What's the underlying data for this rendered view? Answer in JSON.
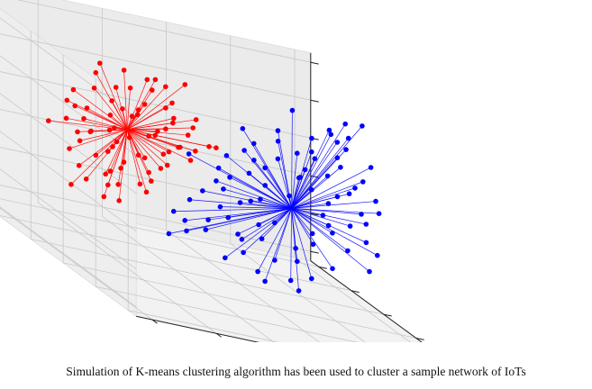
{
  "caption": "Simulation of K-means clustering algorithm has been used to cluster a sample network of IoTs",
  "chart_data": {
    "type": "scatter",
    "projection": "3d",
    "grid": true,
    "title": "",
    "xlabel": "",
    "ylabel": "",
    "zlabel": "",
    "tick_labels": "none",
    "clusters": [
      {
        "color": "#ff0000",
        "centroid": [
          -0.55,
          0.1,
          0.32
        ],
        "points": [
          [
            -0.25,
            -0.02,
            0.98
          ],
          [
            -0.44,
            -0.03,
            0.97
          ],
          [
            -0.58,
            0.08,
            0.95
          ],
          [
            -0.72,
            0.1,
            0.96
          ],
          [
            -0.31,
            0.1,
            0.86
          ],
          [
            -0.41,
            0.13,
            0.88
          ],
          [
            -0.47,
            -0.05,
            0.86
          ],
          [
            -0.71,
            0.17,
            0.82
          ],
          [
            -0.5,
            0.16,
            0.74
          ],
          [
            -0.63,
            0.08,
            0.75
          ],
          [
            -0.29,
            0.06,
            0.72
          ],
          [
            -0.36,
            0.0,
            0.68
          ],
          [
            -0.75,
            0.11,
            0.68
          ],
          [
            -0.84,
            0.19,
            0.58
          ],
          [
            -0.66,
            -0.06,
            0.6
          ],
          [
            -0.52,
            0.02,
            0.59
          ],
          [
            -0.41,
            0.16,
            0.6
          ],
          [
            -0.3,
            0.02,
            0.58
          ],
          [
            -0.92,
            0.11,
            0.49
          ],
          [
            -0.86,
            0.13,
            0.44
          ],
          [
            -0.77,
            0.16,
            0.43
          ],
          [
            -0.66,
            0.09,
            0.44
          ],
          [
            -0.54,
            0.06,
            0.49
          ],
          [
            -0.45,
            0.17,
            0.47
          ],
          [
            -0.34,
            0.04,
            0.44
          ],
          [
            -0.24,
            0.15,
            0.47
          ],
          [
            -0.2,
            -0.02,
            0.54
          ],
          [
            -0.16,
            0.12,
            0.39
          ],
          [
            -0.08,
            0.02,
            0.36
          ],
          [
            -0.02,
            0.05,
            0.35
          ],
          [
            -0.95,
            0.06,
            0.32
          ],
          [
            -0.81,
            0.12,
            0.33
          ],
          [
            -0.7,
            0.02,
            0.31
          ],
          [
            -0.62,
            0.12,
            0.3
          ],
          [
            -0.46,
            0.01,
            0.34
          ],
          [
            -0.35,
            0.15,
            0.3
          ],
          [
            -0.25,
            0.04,
            0.28
          ],
          [
            -0.14,
            0.07,
            0.26
          ],
          [
            -1.0,
            0.18,
            0.2
          ],
          [
            -0.9,
            0.02,
            0.22
          ],
          [
            -0.75,
            0.15,
            0.2
          ],
          [
            -0.64,
            0.05,
            0.19
          ],
          [
            -0.5,
            0.17,
            0.21
          ],
          [
            -0.39,
            -0.03,
            0.2
          ],
          [
            -0.28,
            0.12,
            0.17
          ],
          [
            -0.18,
            0.05,
            0.16
          ],
          [
            -0.85,
            0.09,
            0.1
          ],
          [
            -0.72,
            0.0,
            0.09
          ],
          [
            -0.61,
            0.16,
            0.08
          ],
          [
            -0.45,
            0.08,
            0.07
          ],
          [
            -0.33,
            0.04,
            0.06
          ],
          [
            -0.9,
            0.12,
            -0.02
          ],
          [
            -0.77,
            0.05,
            0.0
          ],
          [
            -0.66,
            -0.04,
            -0.04
          ],
          [
            -0.55,
            0.14,
            -0.05
          ],
          [
            -0.42,
            0.09,
            -0.08
          ],
          [
            -0.3,
            0.18,
            -0.05
          ],
          [
            -0.86,
            0.08,
            -0.16
          ],
          [
            -0.74,
            -0.01,
            -0.15
          ],
          [
            -0.63,
            0.15,
            -0.18
          ],
          [
            -0.5,
            0.04,
            -0.2
          ],
          [
            -0.4,
            0.1,
            -0.17
          ],
          [
            -0.8,
            0.11,
            -0.3
          ],
          [
            -0.68,
            0.08,
            -0.3
          ],
          [
            -0.56,
            0.19,
            -0.32
          ],
          [
            -0.45,
            0.06,
            -0.28
          ],
          [
            -0.72,
            0.05,
            -0.42
          ],
          [
            -0.6,
            0.1,
            -0.45
          ],
          [
            -0.93,
            0.04,
            -0.36
          ],
          [
            -0.12,
            0.1,
            0.58
          ],
          [
            -0.37,
            0.08,
            0.38
          ],
          [
            -0.6,
            0.19,
            0.55
          ],
          [
            -0.82,
            0.02,
            0.25
          ],
          [
            -0.2,
            0.16,
            0.22
          ],
          [
            -0.53,
            0.0,
            0.12
          ]
        ]
      },
      {
        "color": "#0000ff",
        "centroid": [
          0.45,
          0.05,
          -0.12
        ],
        "points": [
          [
            0.88,
            0.03,
            0.92
          ],
          [
            0.8,
            0.08,
            0.88
          ],
          [
            0.64,
            -0.06,
            0.8
          ],
          [
            0.72,
            0.12,
            0.76
          ],
          [
            0.56,
            0.02,
            0.68
          ],
          [
            0.4,
            0.12,
            0.64
          ],
          [
            0.32,
            -0.04,
            0.6
          ],
          [
            0.84,
            0.15,
            0.58
          ],
          [
            0.7,
            -0.02,
            0.55
          ],
          [
            0.6,
            0.1,
            0.5
          ],
          [
            0.48,
            0.04,
            0.48
          ],
          [
            0.26,
            0.14,
            0.44
          ],
          [
            0.14,
            0.02,
            0.4
          ],
          [
            0.76,
            0.06,
            0.42
          ],
          [
            0.66,
            0.18,
            0.4
          ],
          [
            0.38,
            0.08,
            0.36
          ],
          [
            0.22,
            0.06,
            0.3
          ],
          [
            0.08,
            0.12,
            0.26
          ],
          [
            0.92,
            0.1,
            0.3
          ],
          [
            0.82,
            0.0,
            0.26
          ],
          [
            0.58,
            0.14,
            0.28
          ],
          [
            0.46,
            -0.02,
            0.25
          ],
          [
            0.34,
            0.16,
            0.2
          ],
          [
            0.18,
            0.04,
            0.16
          ],
          [
            0.02,
            0.1,
            0.12
          ],
          [
            0.98,
            0.06,
            0.14
          ],
          [
            0.86,
            0.15,
            0.12
          ],
          [
            0.72,
            0.02,
            0.12
          ],
          [
            0.6,
            0.1,
            0.1
          ],
          [
            0.3,
            0.08,
            0.05
          ],
          [
            0.12,
            0.16,
            0.02
          ],
          [
            -0.02,
            0.05,
            0.0
          ],
          [
            1.02,
            0.1,
            0.0
          ],
          [
            0.88,
            0.04,
            -0.02
          ],
          [
            0.74,
            0.17,
            -0.04
          ],
          [
            0.24,
            0.02,
            -0.08
          ],
          [
            0.06,
            0.12,
            -0.1
          ],
          [
            -0.1,
            0.06,
            -0.14
          ],
          [
            0.96,
            0.14,
            -0.16
          ],
          [
            0.82,
            0.06,
            -0.18
          ],
          [
            0.66,
            0.01,
            -0.2
          ],
          [
            0.18,
            0.15,
            -0.22
          ],
          [
            0.0,
            0.04,
            -0.26
          ],
          [
            -0.16,
            0.1,
            -0.28
          ],
          [
            0.9,
            0.02,
            -0.3
          ],
          [
            0.74,
            0.12,
            -0.32
          ],
          [
            0.58,
            0.05,
            -0.34
          ],
          [
            0.4,
            0.16,
            -0.36
          ],
          [
            0.26,
            0.08,
            -0.38
          ],
          [
            0.1,
            0.14,
            -0.4
          ],
          [
            -0.08,
            0.03,
            -0.42
          ],
          [
            -0.26,
            0.1,
            -0.44
          ],
          [
            0.82,
            0.09,
            -0.46
          ],
          [
            0.64,
            0.16,
            -0.5
          ],
          [
            0.46,
            0.02,
            -0.52
          ],
          [
            0.3,
            0.12,
            -0.54
          ],
          [
            0.14,
            0.05,
            -0.56
          ],
          [
            -0.04,
            0.14,
            -0.58
          ],
          [
            -0.2,
            0.06,
            -0.6
          ],
          [
            0.7,
            0.04,
            -0.66
          ],
          [
            0.52,
            0.12,
            -0.7
          ],
          [
            0.36,
            0.08,
            -0.72
          ],
          [
            0.2,
            0.15,
            -0.74
          ],
          [
            0.02,
            0.02,
            -0.78
          ],
          [
            0.6,
            0.1,
            -0.84
          ],
          [
            0.44,
            0.04,
            -0.88
          ],
          [
            0.28,
            0.13,
            -0.9
          ],
          [
            0.5,
            0.06,
            -0.98
          ],
          [
            0.34,
            0.16,
            -1.0
          ],
          [
            -0.32,
            0.04,
            -0.66
          ],
          [
            0.98,
            0.12,
            0.46
          ],
          [
            0.52,
            0.18,
            0.86
          ],
          [
            0.16,
            0.08,
            0.6
          ],
          [
            -0.14,
            0.15,
            0.18
          ],
          [
            0.92,
            0.02,
            -0.6
          ],
          [
            0.56,
            0.16,
            0.18
          ],
          [
            0.42,
            0.02,
            0.02
          ],
          [
            0.62,
            0.0,
            -0.1
          ],
          [
            0.2,
            0.06,
            -0.14
          ],
          [
            0.76,
            0.1,
            0.66
          ],
          [
            0.1,
            0.02,
            -0.5
          ],
          [
            -0.18,
            0.12,
            -0.52
          ],
          [
            0.98,
            0.04,
            -0.42
          ],
          [
            0.86,
            0.16,
            0.7
          ],
          [
            0.68,
            0.06,
            0.3
          ]
        ]
      }
    ]
  }
}
